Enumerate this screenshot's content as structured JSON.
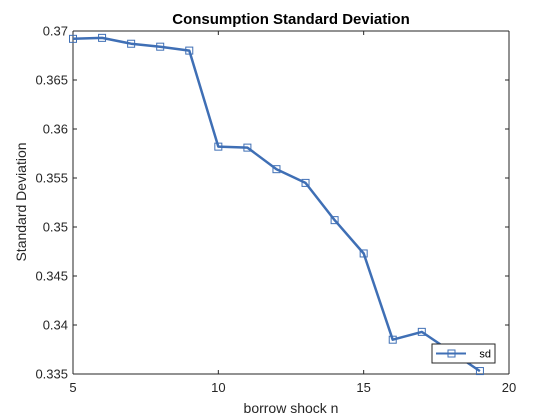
{
  "chart_data": {
    "type": "line",
    "title": "Consumption Standard Deviation",
    "xlabel": "borrow shock n",
    "ylabel": "Standard Deviation",
    "xlim": [
      5,
      20
    ],
    "ylim": [
      0.335,
      0.37
    ],
    "xticks": [
      5,
      10,
      15,
      20
    ],
    "yticks": [
      0.335,
      0.34,
      0.345,
      0.35,
      0.355,
      0.36,
      0.365,
      0.37
    ],
    "ytick_labels": [
      "0.335",
      "0.34",
      "0.345",
      "0.35",
      "0.355",
      "0.36",
      "0.365",
      "0.37"
    ],
    "grid": false,
    "legend_position": "bottom-right",
    "series": [
      {
        "name": "sd",
        "color": "#3f6fb5",
        "marker": "square",
        "x": [
          5,
          6,
          7,
          8,
          9,
          10,
          11,
          12,
          13,
          14,
          15,
          16,
          17,
          18,
          19
        ],
        "y": [
          0.3692,
          0.3693,
          0.3687,
          0.3684,
          0.368,
          0.3582,
          0.3581,
          0.3559,
          0.3545,
          0.3507,
          0.3473,
          0.3385,
          0.3393,
          0.3373,
          0.3353
        ]
      }
    ]
  }
}
